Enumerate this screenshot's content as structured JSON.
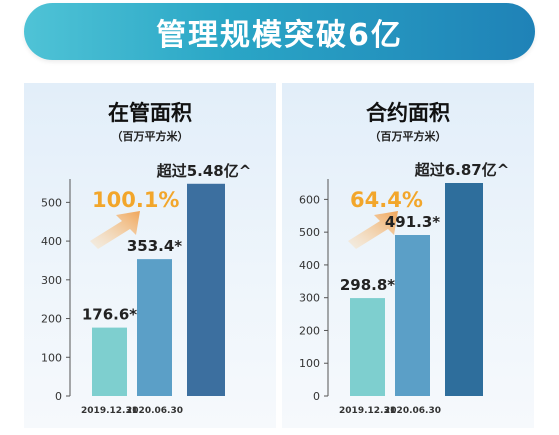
{
  "banner": {
    "title": "管理规模突破6亿"
  },
  "chart_data": [
    {
      "type": "bar",
      "title": "在管面积",
      "unit": "（百万平方米）",
      "categories": [
        "2019.12.31",
        "2020.06.30",
        ""
      ],
      "values": [
        176.6,
        353.4,
        548
      ],
      "data_labels": [
        "176.6*",
        "353.4*",
        "超过5.48亿^"
      ],
      "growth_label": "100.1%",
      "ylim": [
        0,
        550
      ],
      "yticks": [
        0,
        100,
        200,
        300,
        400,
        500
      ],
      "colors": [
        "#7ecfcf",
        "#5b9fc7",
        "#3c6f9f"
      ],
      "growth_color": "#f2a62b",
      "grid": false
    },
    {
      "type": "bar",
      "title": "合约面积",
      "unit": "（百万平方米）",
      "categories": [
        "2019.12.31",
        "2020.06.30",
        ""
      ],
      "values": [
        298.8,
        491.3,
        687
      ],
      "data_labels": [
        "298.8*",
        "491.3*",
        "超过6.87亿^"
      ],
      "growth_label": "64.4%",
      "ylim": [
        0,
        650
      ],
      "yticks": [
        0,
        100,
        200,
        300,
        400,
        500,
        600
      ],
      "colors": [
        "#7ecfcf",
        "#5b9fc7",
        "#2e6e9c"
      ],
      "growth_color": "#f2a62b",
      "grid": false
    }
  ]
}
